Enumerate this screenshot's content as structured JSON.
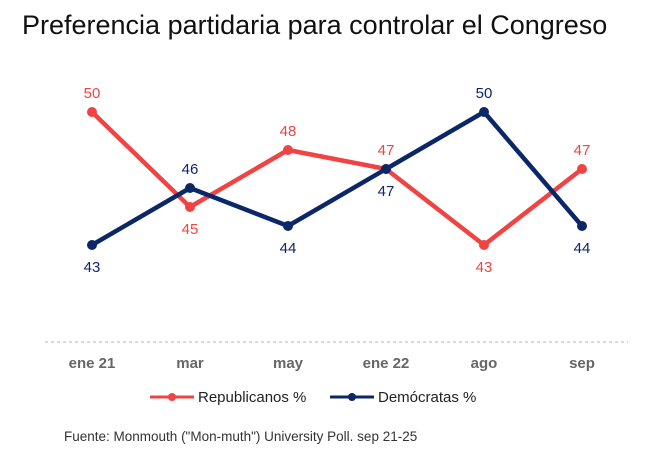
{
  "chart_data": {
    "type": "line",
    "title": "Preferencia partidaria para controlar el Congreso",
    "categories": [
      "ene 21",
      "mar",
      "may",
      "ene 22",
      "ago",
      "sep"
    ],
    "ylim": [
      40,
      52
    ],
    "grid": false,
    "legend_position": "bottom",
    "series": [
      {
        "name": "Republicanos %",
        "color": "#f04444",
        "values": [
          50,
          45,
          48,
          47,
          43,
          47
        ],
        "labels": [
          "50",
          "45",
          "48",
          "47",
          "43",
          "47"
        ],
        "label_positions": [
          "above",
          "below",
          "above",
          "above",
          "below",
          "above"
        ]
      },
      {
        "name": "Demócratas %",
        "color": "#0c2768",
        "values": [
          43,
          46,
          44,
          47,
          50,
          44
        ],
        "labels": [
          "43",
          "46",
          "44",
          "47",
          "50",
          "44"
        ],
        "label_positions": [
          "below",
          "above",
          "below",
          "below",
          "above",
          "below"
        ]
      }
    ]
  },
  "source": "Fuente: Monmouth (\"Mon-muth\") University Poll. sep 21-25"
}
